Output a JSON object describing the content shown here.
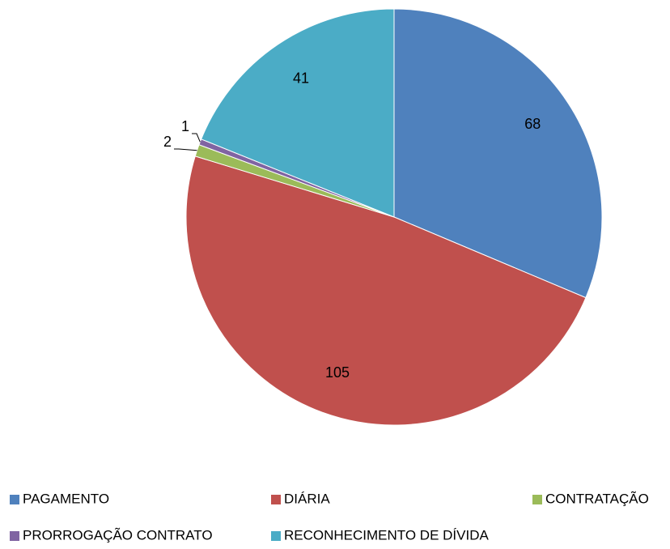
{
  "chart_data": {
    "type": "pie",
    "categories": [
      "PAGAMENTO",
      "DIÁRIA",
      "CONTRATAÇÃO",
      "PRORROGAÇÃO CONTRATO",
      "RECONHECIMENTO DE DÍVIDA"
    ],
    "values": [
      68,
      105,
      2,
      1,
      41
    ],
    "colors": [
      "#4f81bd",
      "#c0504d",
      "#9bbb59",
      "#8064a2",
      "#4bacc6"
    ],
    "legend": "bottom"
  }
}
